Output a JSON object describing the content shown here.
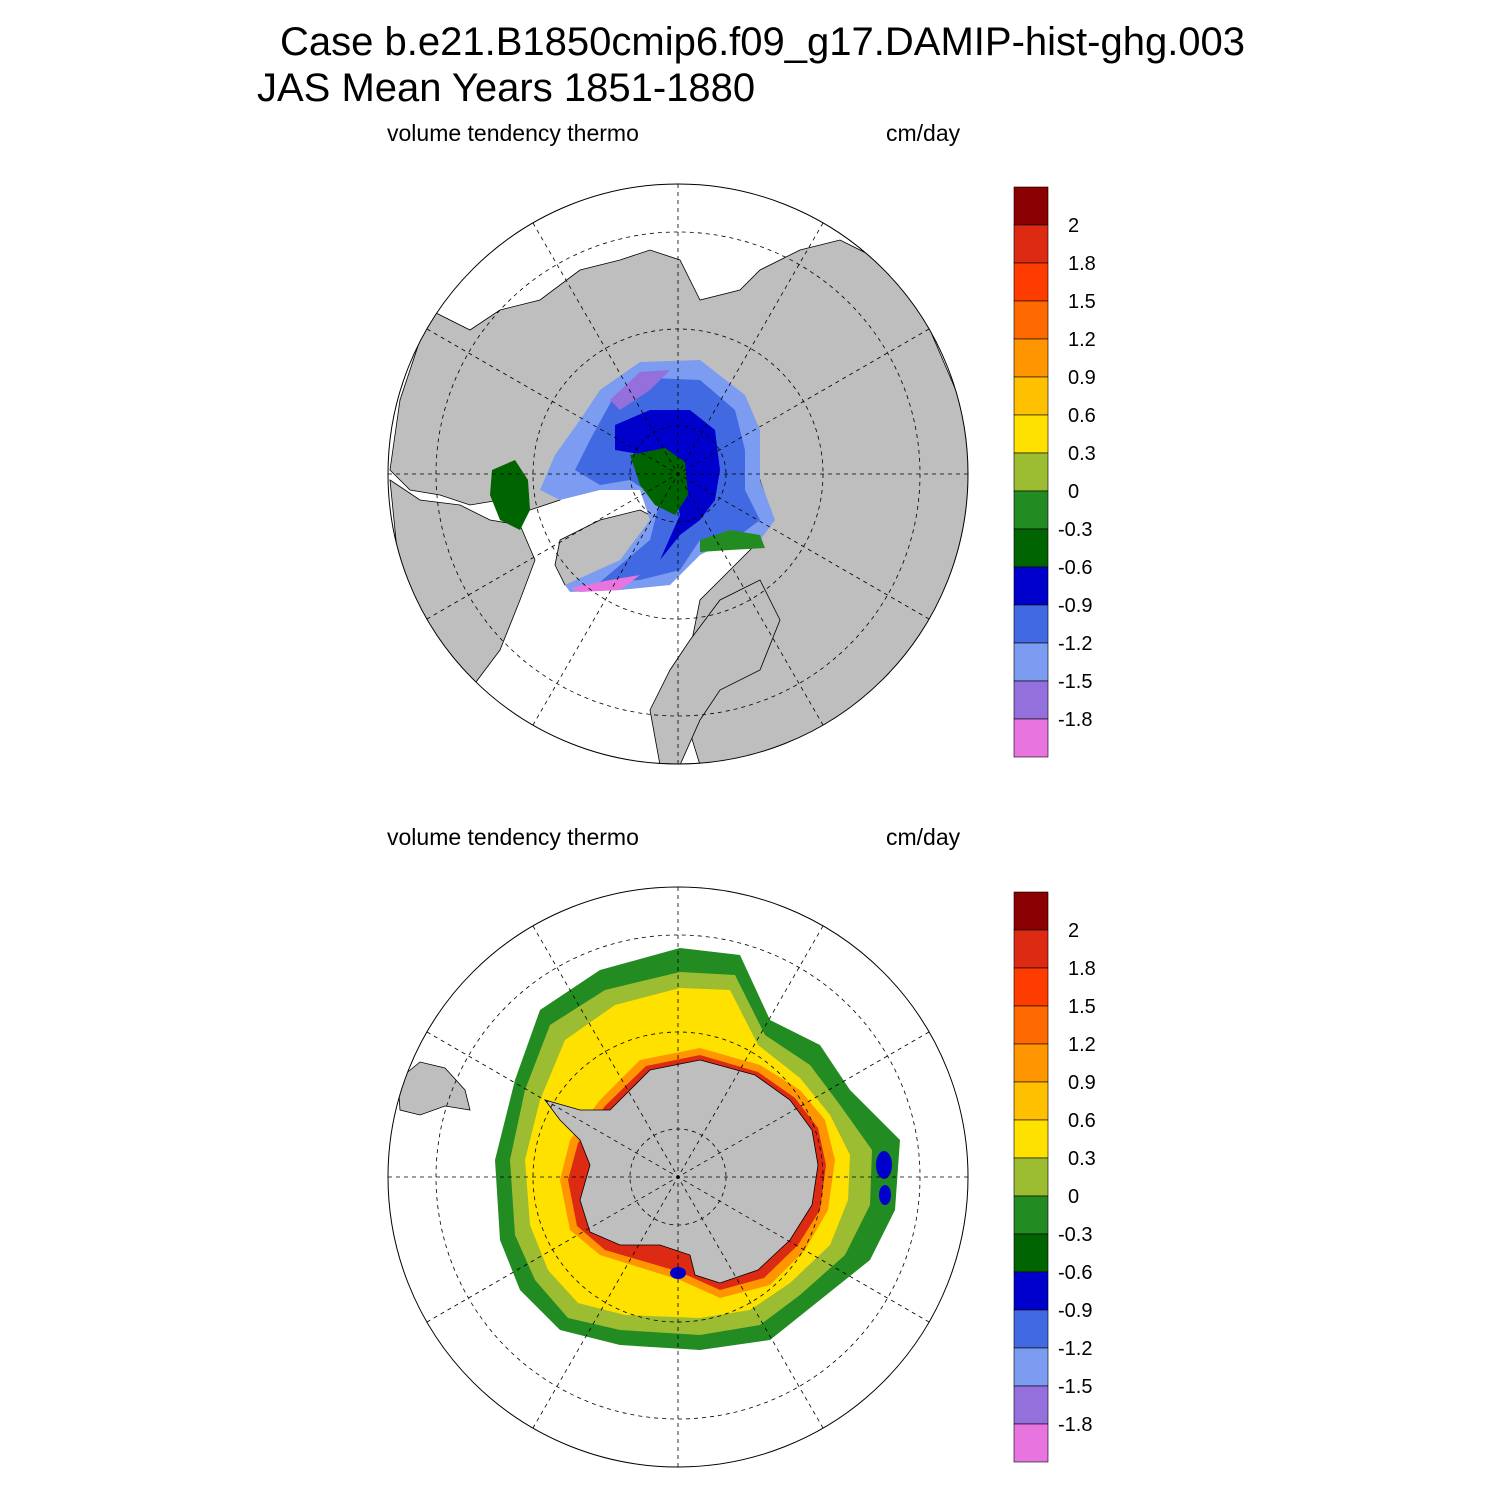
{
  "title_line1": "Case b.e21.B1850cmip6.f09_g17.DAMIP-hist-ghg.003",
  "title_line2": "JAS Mean   Years 1851-1880",
  "panels": [
    {
      "name": "north",
      "field": "volume tendency thermo",
      "units": "cm/day"
    },
    {
      "name": "south",
      "field": "volume tendency thermo",
      "units": "cm/day"
    }
  ],
  "colorbar": {
    "labels": [
      "2",
      "1.8",
      "1.5",
      "1.2",
      "0.9",
      "0.6",
      "0.3",
      "0",
      "-0.3",
      "-0.6",
      "-0.9",
      "-1.2",
      "-1.5",
      "-1.8"
    ],
    "colors": [
      "#8b0000",
      "#dc2a13",
      "#ff3c00",
      "#ff6a00",
      "#ff9600",
      "#ffc000",
      "#ffe100",
      "#9cbd32",
      "#228b22",
      "#006400",
      "#0000cd",
      "#4169e1",
      "#7b9cf0",
      "#9370db",
      "#e874e0"
    ]
  },
  "colors": {
    "land": "#bebebe",
    "ocean": "#ffffff"
  }
}
